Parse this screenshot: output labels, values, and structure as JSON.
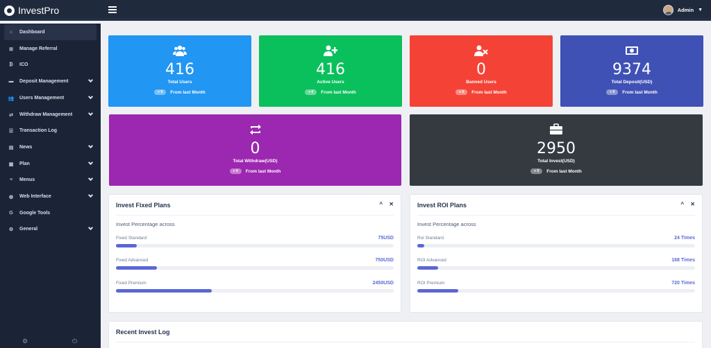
{
  "brand": {
    "name": "InvestPro"
  },
  "header": {
    "user_name": "Admin"
  },
  "sidebar": {
    "items": [
      {
        "label": "Dashboard",
        "icon": "home-icon",
        "chevron": false
      },
      {
        "label": "Manage Referral",
        "icon": "sitemap-icon",
        "chevron": false
      },
      {
        "label": "ICO",
        "icon": "bitcoin-icon",
        "chevron": false
      },
      {
        "label": "Deposit Management",
        "icon": "credit-card-icon",
        "chevron": true
      },
      {
        "label": "Users Management",
        "icon": "users-icon",
        "chevron": true
      },
      {
        "label": "Withdraw Management",
        "icon": "exchange-icon",
        "chevron": true
      },
      {
        "label": "Transaction Log",
        "icon": "list-icon",
        "chevron": false
      },
      {
        "label": "News",
        "icon": "newspaper-icon",
        "chevron": true
      },
      {
        "label": "Plan",
        "icon": "plan-icon",
        "chevron": true
      },
      {
        "label": "Menus",
        "icon": "menu-icon",
        "chevron": true
      },
      {
        "label": "Web Interface",
        "icon": "globe-icon",
        "chevron": true
      },
      {
        "label": "Google Tools",
        "icon": "google-icon",
        "chevron": false
      },
      {
        "label": "General",
        "icon": "gear-icon",
        "chevron": true
      }
    ]
  },
  "stats": [
    {
      "value": "416",
      "label": "Total Users",
      "badge": "+ 0",
      "trend": "From last Month",
      "color": "#2196f3",
      "icon": "users-group-icon"
    },
    {
      "value": "416",
      "label": "Active Users",
      "badge": "+ 0",
      "trend": "From last Month",
      "color": "#0ac05c",
      "icon": "user-plus-icon"
    },
    {
      "value": "0",
      "label": "Banned Users",
      "badge": "+ 0",
      "trend": "From last Month",
      "color": "#f44336",
      "icon": "user-times-icon"
    },
    {
      "value": "9374",
      "label": "Total Deposit(USD)",
      "badge": "+ 0",
      "trend": "From last Month",
      "color": "#3f51b5",
      "icon": "money-bill-icon"
    },
    {
      "value": "0",
      "label": "Total Withdraw(USD)",
      "badge": "+ 0",
      "trend": "From last Month",
      "color": "#9c27b0",
      "icon": "retweet-icon"
    },
    {
      "value": "2950",
      "label": "Total Invest(USD)",
      "badge": "+ 0",
      "trend": "From last Month",
      "color": "#343a40",
      "icon": "briefcase-icon"
    }
  ],
  "fixed_plans": {
    "title": "Invest Fixed Plans",
    "subtitle": "Invest Percentage across",
    "items": [
      {
        "name": "Fixed Standard",
        "value": "75USD",
        "fill": 0.074
      },
      {
        "name": "Fixed Advanced",
        "value": "750USD",
        "fill": 0.148
      },
      {
        "name": "Fixed Premium",
        "value": "2450USD",
        "fill": 0.346
      }
    ]
  },
  "roi_plans": {
    "title": "Invest ROI Plans",
    "subtitle": "Invest Percentage across",
    "items": [
      {
        "name": "Roi Standard",
        "value": "24 Times",
        "fill": 0.025
      },
      {
        "name": "ROI Advanced",
        "value": "168 Times",
        "fill": 0.074
      },
      {
        "name": "ROI Premium",
        "value": "720 Times",
        "fill": 0.148
      }
    ]
  },
  "recent_log": {
    "title": "Recent Invest Log"
  },
  "controls": {
    "collapse": "^",
    "close": "✕"
  }
}
